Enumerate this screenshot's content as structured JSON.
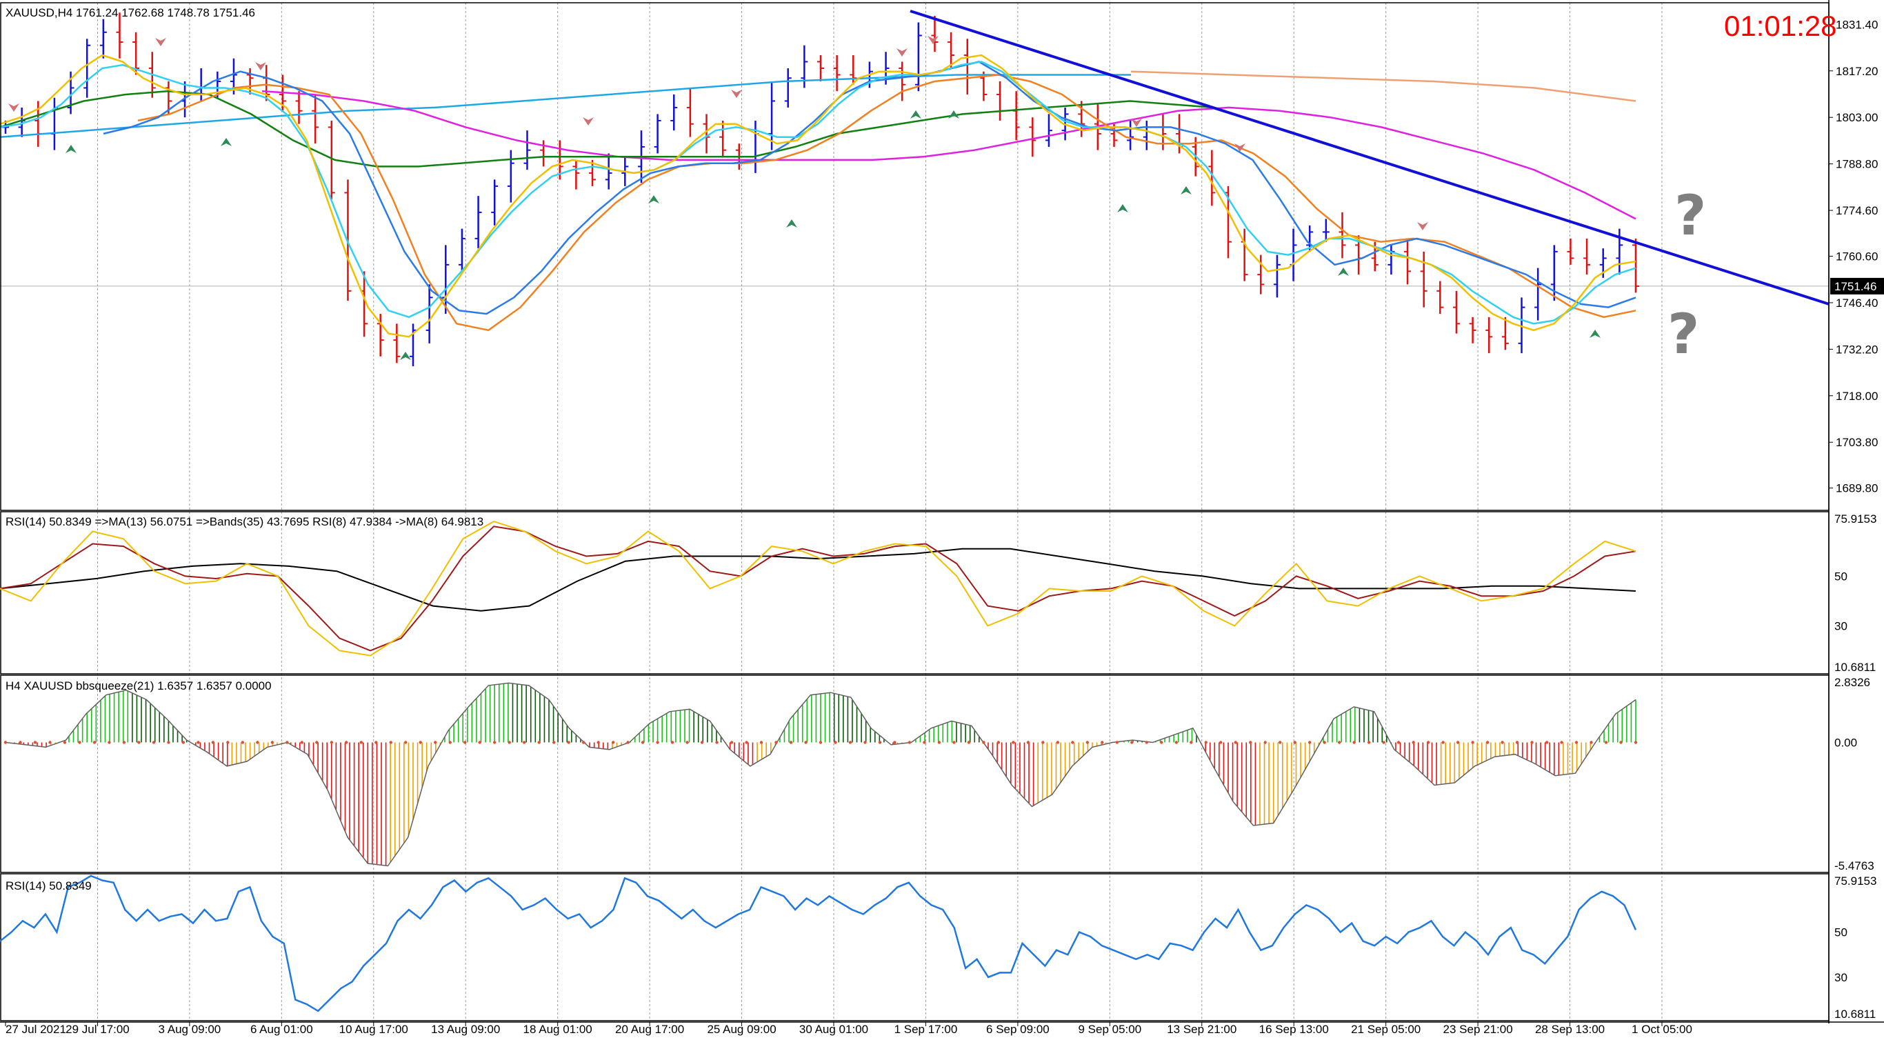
{
  "chart_data": {
    "type": "line",
    "symbol_header": "XAUUSD,H4  1761.24 1762.68 1748.78 1751.46",
    "timer": "01:01:28",
    "current_price_label": "1751.46",
    "price_ticks": [
      "1831.40",
      "1817.20",
      "1803.00",
      "1788.80",
      "1774.60",
      "1760.60",
      "1746.40",
      "1732.20",
      "1718.00",
      "1703.80",
      "1689.80"
    ],
    "price_range": [
      1683,
      1838
    ],
    "x_labels": [
      "27 Jul 2021",
      "29 Jul 17:00",
      "3 Aug 09:00",
      "6 Aug 01:00",
      "10 Aug 17:00",
      "13 Aug 09:00",
      "18 Aug 01:00",
      "20 Aug 17:00",
      "25 Aug 09:00",
      "30 Aug 01:00",
      "1 Sep 17:00",
      "6 Sep 09:00",
      "9 Sep 05:00",
      "13 Sep 21:00",
      "16 Sep 13:00",
      "21 Sep 05:00",
      "23 Sep 21:00",
      "28 Sep 13:00",
      "1 Oct 05:00"
    ],
    "price_close": [
      1800,
      1802,
      1798,
      1806,
      1812,
      1825,
      1829,
      1826,
      1818,
      1812,
      1808,
      1810,
      1812,
      1814,
      1816,
      1815,
      1810,
      1808,
      1805,
      1800,
      1780,
      1750,
      1740,
      1735,
      1730,
      1738,
      1748,
      1758,
      1766,
      1774,
      1782,
      1789,
      1793,
      1791,
      1788,
      1786,
      1784,
      1786,
      1788,
      1794,
      1802,
      1806,
      1801,
      1797,
      1793,
      1790,
      1798,
      1808,
      1815,
      1820,
      1818,
      1816,
      1815,
      1817,
      1818,
      1813,
      1828,
      1826,
      1822,
      1815,
      1810,
      1805,
      1800,
      1796,
      1799,
      1804,
      1801,
      1798,
      1796,
      1797,
      1800,
      1798,
      1794,
      1788,
      1780,
      1765,
      1755,
      1752,
      1758,
      1764,
      1768,
      1768,
      1764,
      1760,
      1758,
      1762,
      1756,
      1750,
      1745,
      1740,
      1738,
      1736,
      1734,
      1745,
      1752,
      1762,
      1760,
      1758,
      1760,
      1764,
      1751.46
    ],
    "ma_fast": [
      1801,
      1803,
      1806,
      1812,
      1818,
      1822,
      1820,
      1815,
      1812,
      1810,
      1810,
      1811,
      1812,
      1810,
      1806,
      1796,
      1778,
      1760,
      1745,
      1737,
      1736,
      1741,
      1750,
      1759,
      1768,
      1776,
      1783,
      1788,
      1790,
      1789,
      1787,
      1786,
      1787,
      1790,
      1796,
      1801,
      1801,
      1798,
      1795,
      1796,
      1802,
      1809,
      1815,
      1817,
      1817,
      1816,
      1817,
      1821,
      1822,
      1818,
      1812,
      1806,
      1801,
      1799,
      1800,
      1800,
      1799,
      1797,
      1793,
      1786,
      1775,
      1763,
      1756,
      1757,
      1762,
      1766,
      1767,
      1764,
      1761,
      1760,
      1758,
      1754,
      1748,
      1743,
      1740,
      1738,
      1740,
      1746,
      1754,
      1758,
      1759
    ],
    "ma_cyan": [
      1800,
      1801,
      1803,
      1807,
      1813,
      1818,
      1819,
      1817,
      1815,
      1813,
      1812,
      1812,
      1811,
      1809,
      1804,
      1795,
      1781,
      1765,
      1752,
      1744,
      1742,
      1745,
      1752,
      1759,
      1767,
      1774,
      1780,
      1785,
      1787,
      1788,
      1787,
      1786,
      1787,
      1790,
      1795,
      1799,
      1800,
      1799,
      1797,
      1797,
      1801,
      1807,
      1812,
      1815,
      1816,
      1816,
      1817,
      1819,
      1820,
      1817,
      1812,
      1807,
      1802,
      1800,
      1800,
      1800,
      1799,
      1797,
      1794,
      1788,
      1779,
      1769,
      1762,
      1761,
      1763,
      1766,
      1766,
      1764,
      1762,
      1760,
      1758,
      1755,
      1750,
      1746,
      1742,
      1740,
      1741,
      1745,
      1751,
      1755,
      1757
    ],
    "ma_blue_mid": [
      1798,
      1800,
      1803,
      1809,
      1814,
      1817,
      1815,
      1812,
      1808,
      1798,
      1780,
      1762,
      1750,
      1744,
      1743,
      1748,
      1756,
      1766,
      1774,
      1781,
      1786,
      1788,
      1789,
      1789,
      1790,
      1795,
      1802,
      1810,
      1814,
      1815,
      1816,
      1818,
      1820,
      1815,
      1808,
      1803,
      1800,
      1799,
      1800,
      1800,
      1798,
      1795,
      1790,
      1778,
      1765,
      1758,
      1760,
      1764,
      1766,
      1764,
      1761,
      1758,
      1755,
      1750,
      1746,
      1745,
      1748
    ],
    "ma_orange": [
      1802,
      1804,
      1808,
      1812,
      1813,
      1812,
      1810,
      1798,
      1778,
      1755,
      1740,
      1738,
      1745,
      1756,
      1768,
      1777,
      1784,
      1788,
      1789,
      1789,
      1790,
      1793,
      1798,
      1805,
      1811,
      1814,
      1815,
      1816,
      1814,
      1810,
      1803,
      1797,
      1795,
      1795,
      1796,
      1792,
      1785,
      1775,
      1767,
      1765,
      1766,
      1765,
      1761,
      1757,
      1751,
      1745,
      1742,
      1744
    ],
    "ma_green": [
      1800,
      1804,
      1808,
      1810,
      1811,
      1810,
      1804,
      1796,
      1790,
      1788,
      1788,
      1789,
      1790,
      1791,
      1791,
      1791,
      1791,
      1791,
      1791,
      1794,
      1798,
      1800,
      1802,
      1804,
      1805,
      1806,
      1807,
      1808,
      1807,
      1806
    ],
    "ma_magenta": [
      1811,
      1810,
      1808,
      1805,
      1800,
      1796,
      1793,
      1791,
      1790,
      1790,
      1790,
      1790,
      1790,
      1791,
      1793,
      1796,
      1799,
      1802,
      1805,
      1806,
      1805,
      1803,
      1800,
      1796,
      1792,
      1787,
      1780,
      1772
    ],
    "ma_lightblue": [
      1797,
      1799,
      1801,
      1803,
      1805,
      1806,
      1808,
      1810,
      1812,
      1814,
      1815,
      1816,
      1816,
      1816
    ],
    "ma_salmon": [
      1817,
      1816,
      1815,
      1814,
      1812,
      1808
    ],
    "rsi_panel": {
      "header": "RSI(14) 50.8349  =>MA(13) 56.0751  =>Bands(35) 43.7695  RSI(8) 47.9384  ->MA(8) 64.9813",
      "ticks": [
        "75.9153",
        "50",
        "30",
        "10.6811"
      ],
      "range": [
        10.6811,
        75.9153
      ],
      "rsi8": [
        45,
        40,
        55,
        68,
        65,
        52,
        47,
        48,
        55,
        50,
        30,
        20,
        18,
        26,
        45,
        65,
        72,
        68,
        60,
        55,
        58,
        68,
        60,
        45,
        50,
        62,
        60,
        55,
        60,
        63,
        62,
        50,
        30,
        35,
        45,
        44,
        44,
        50,
        46,
        36,
        30,
        43,
        55,
        40,
        38,
        45,
        50,
        45,
        40,
        42,
        45,
        55,
        64,
        60
      ],
      "rsi_ma": [
        45,
        47,
        55,
        63,
        62,
        55,
        50,
        49,
        51,
        50,
        38,
        25,
        20,
        25,
        40,
        58,
        70,
        68,
        62,
        58,
        59,
        64,
        62,
        52,
        50,
        58,
        61,
        58,
        59,
        62,
        63,
        55,
        38,
        36,
        42,
        44,
        45,
        48,
        46,
        40,
        34,
        40,
        50,
        46,
        41,
        44,
        48,
        46,
        42,
        42,
        44,
        50,
        58,
        60
      ],
      "rsi_bands_mid": [
        45,
        47,
        49,
        52,
        54,
        55,
        54,
        52,
        45,
        38,
        36,
        38,
        48,
        56,
        58,
        58,
        58,
        57,
        58,
        59,
        61,
        61,
        58,
        55,
        52,
        50,
        47,
        45,
        45,
        45,
        45,
        46,
        46,
        45,
        44
      ]
    },
    "squeeze_panel": {
      "header": "H4 XAUUSD bbsqueeze(21) 1.6357 1.6357 0.0000",
      "ticks": [
        "2.8326",
        "0.00",
        "-5.4763"
      ],
      "range": [
        -5.4763,
        2.8326
      ],
      "values": [
        0,
        -0.1,
        -0.2,
        0.1,
        1.2,
        2.0,
        2.2,
        1.8,
        1.0,
        0.1,
        -0.4,
        -1.0,
        -0.8,
        -0.2,
        0,
        -0.5,
        -2.0,
        -4.0,
        -5.1,
        -5.2,
        -4.0,
        -1.0,
        0.5,
        1.5,
        2.4,
        2.5,
        2.4,
        1.8,
        0.6,
        -0.2,
        -0.3,
        0,
        0.8,
        1.3,
        1.4,
        0.9,
        -0.3,
        -1.0,
        -0.5,
        1.0,
        2.0,
        2.1,
        1.9,
        0.6,
        -0.1,
        0,
        0.6,
        0.9,
        0.7,
        -0.5,
        -1.8,
        -2.7,
        -2.2,
        -1.0,
        -0.2,
        0,
        0.1,
        0,
        0.3,
        0.6,
        -1.0,
        -2.5,
        -3.5,
        -3.4,
        -2.0,
        -0.5,
        1.0,
        1.5,
        1.3,
        -0.3,
        -1.0,
        -1.8,
        -1.7,
        -1.0,
        -0.6,
        -0.5,
        -0.9,
        -1.4,
        -1.3,
        0,
        1.2,
        1.8
      ]
    },
    "rsi2_panel": {
      "header": "RSI(14) 50.8349",
      "ticks": [
        "75.9153",
        "50",
        "30",
        "10.6811"
      ],
      "range": [
        10.6811,
        75.9153
      ],
      "values": [
        46,
        50,
        55,
        52,
        58,
        50,
        70,
        72,
        75,
        73,
        72,
        60,
        55,
        60,
        55,
        57,
        58,
        54,
        60,
        55,
        56,
        68,
        70,
        55,
        48,
        45,
        20,
        18,
        15,
        20,
        25,
        28,
        35,
        40,
        45,
        55,
        60,
        56,
        62,
        70,
        73,
        68,
        72,
        74,
        70,
        66,
        60,
        62,
        65,
        60,
        56,
        58,
        52,
        55,
        60,
        74,
        72,
        66,
        64,
        60,
        56,
        60,
        55,
        52,
        55,
        58,
        60,
        70,
        68,
        66,
        60,
        65,
        62,
        66,
        63,
        60,
        58,
        62,
        65,
        70,
        72,
        66,
        62,
        60,
        52,
        34,
        38,
        30,
        32,
        32,
        45,
        40,
        35,
        42,
        40,
        50,
        48,
        44,
        42,
        40,
        38,
        40,
        38,
        45,
        44,
        42,
        50,
        56,
        52,
        60,
        50,
        42,
        44,
        52,
        58,
        62,
        60,
        56,
        50,
        54,
        46,
        44,
        48,
        45,
        50,
        52,
        55,
        48,
        44,
        50,
        46,
        40,
        48,
        52,
        42,
        40,
        36,
        42,
        48,
        60,
        65,
        68,
        66,
        62,
        51
      ]
    }
  }
}
